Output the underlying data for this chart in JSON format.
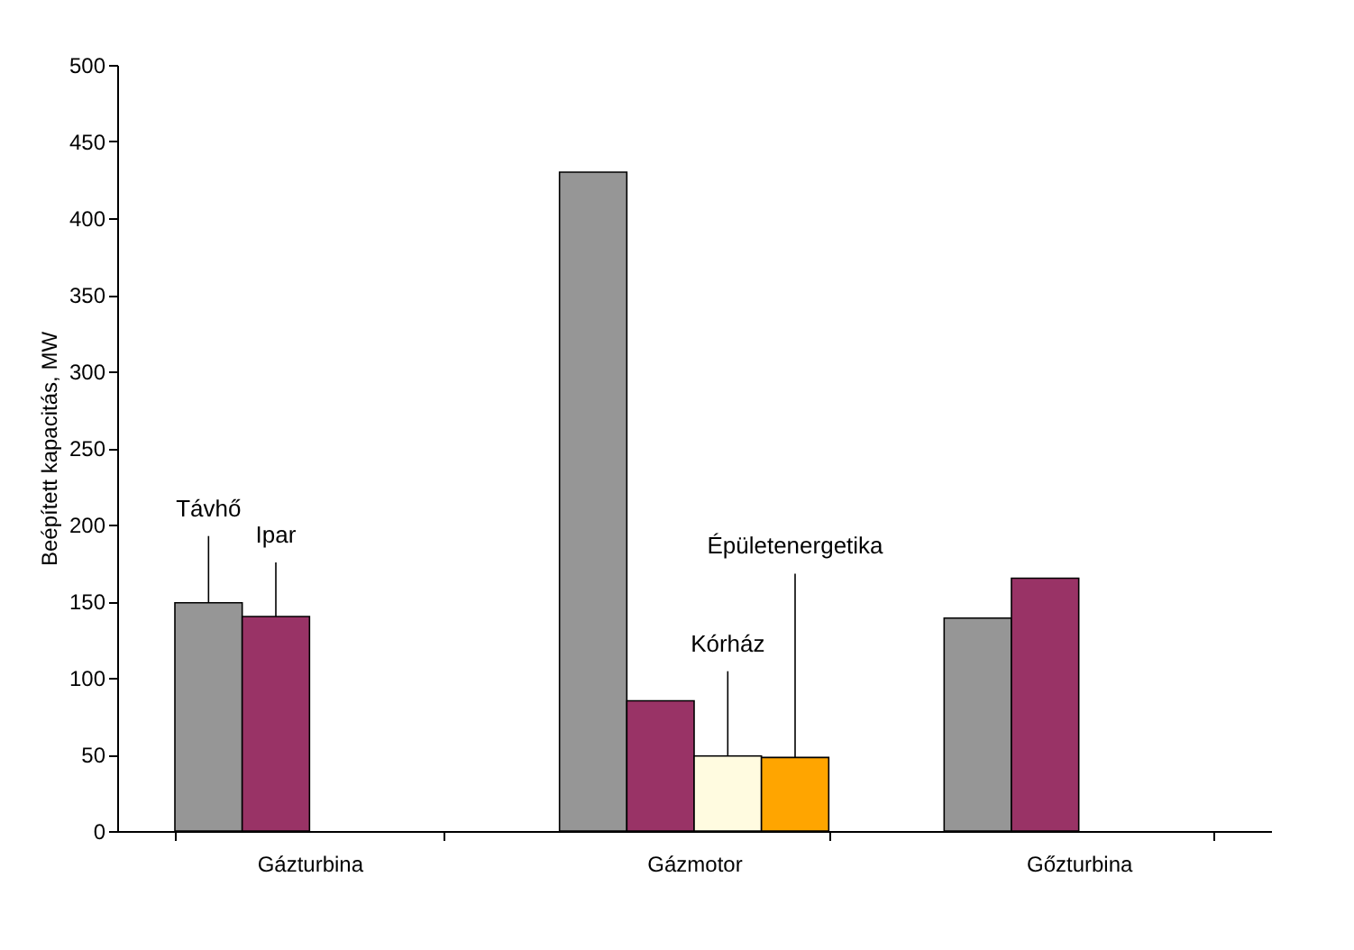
{
  "chart_data": {
    "type": "bar",
    "ylabel": "Beépített kapacitás, MW",
    "categories": [
      "Gázturbina",
      "Gázmotor",
      "Gőzturbina"
    ],
    "series": [
      {
        "name": "Távhő",
        "color": "#969696",
        "values": [
          149,
          430,
          139
        ]
      },
      {
        "name": "Ipar",
        "color": "#993366",
        "values": [
          140,
          85,
          165
        ]
      },
      {
        "name": "Kórház",
        "color": "#fffbe0",
        "values": [
          null,
          49,
          null
        ]
      },
      {
        "name": "Épületenergetika",
        "color": "#ffa500",
        "values": [
          null,
          48,
          null
        ]
      }
    ],
    "ylim": [
      0,
      500
    ],
    "yticks": [
      0,
      50,
      100,
      150,
      200,
      250,
      300,
      350,
      400,
      450,
      500
    ],
    "grid": false,
    "legend": false
  }
}
